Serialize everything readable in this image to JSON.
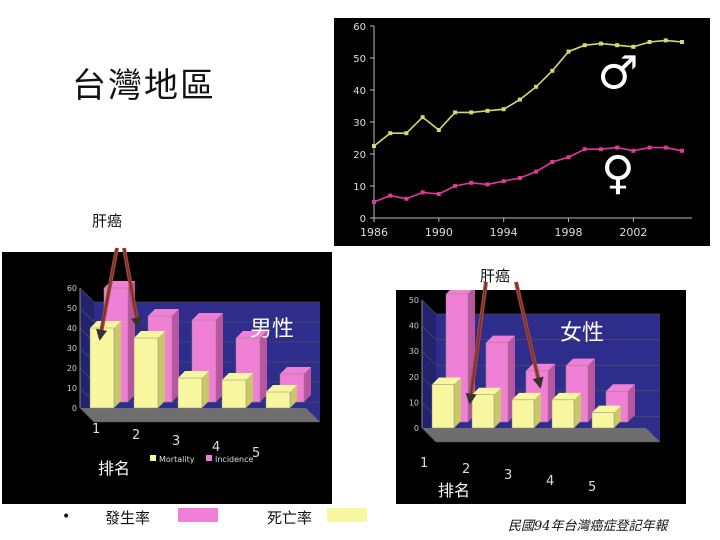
{
  "title": "台灣地區",
  "liver_label": "肝癌",
  "caption": "民國94年台灣癌症登記年報",
  "bullet": "•",
  "legend": {
    "incidence_label": "發生率",
    "mortality_label": "死亡率",
    "incidence_color": "#f07fd6",
    "mortality_color": "#f8f7a0"
  },
  "chart_data": [
    {
      "type": "line",
      "x": [
        1986,
        1987,
        1988,
        1989,
        1990,
        1991,
        1992,
        1993,
        1994,
        1995,
        1996,
        1997,
        1998,
        1999,
        2000,
        2001,
        2002,
        2003,
        2004,
        2005
      ],
      "series": [
        {
          "symbol": "♂",
          "color": "#d8d86a",
          "values": [
            22.5,
            26.5,
            26.5,
            31.5,
            27.5,
            33,
            33,
            33.5,
            34,
            37,
            41,
            46,
            52,
            54,
            54.5,
            54,
            53.5,
            55,
            55.5,
            55
          ]
        },
        {
          "symbol": "♀",
          "color": "#e0389a",
          "values": [
            5,
            7,
            6,
            8,
            7.5,
            10,
            11,
            10.5,
            11.5,
            12.5,
            14.5,
            17.5,
            19,
            21.5,
            21.5,
            22,
            21,
            22,
            22,
            21
          ]
        }
      ],
      "xticks": [
        "1986",
        "1990",
        "1994",
        "1998",
        "2002"
      ],
      "yticks": [
        "0",
        "10",
        "20",
        "30",
        "40",
        "50",
        "60"
      ],
      "ylim": [
        0,
        60
      ],
      "grid": false
    },
    {
      "type": "bar",
      "title": "男性",
      "xlabel": "排名",
      "categories": [
        "1",
        "2",
        "3",
        "4",
        "5"
      ],
      "series": [
        {
          "name": "Mortality",
          "color": "#f8f7a0",
          "values": [
            40,
            35,
            15,
            14,
            8
          ]
        },
        {
          "name": "Incidence",
          "color": "#f07fd6",
          "values": [
            57,
            43,
            41,
            32,
            14
          ]
        }
      ],
      "yticks": [
        "0",
        "10",
        "20",
        "30",
        "40",
        "50",
        "60"
      ],
      "ylim": [
        0,
        60
      ],
      "legend": "bottom"
    },
    {
      "type": "bar",
      "title": "女性",
      "xlabel": "排名",
      "categories": [
        "1",
        "2",
        "3",
        "4",
        "5"
      ],
      "series": [
        {
          "name": "Mortality",
          "color": "#f8f7a0",
          "values": [
            17,
            13,
            11,
            11,
            6
          ]
        },
        {
          "name": "Incidence",
          "color": "#f07fd6",
          "values": [
            50,
            31,
            20,
            22,
            12
          ]
        }
      ],
      "yticks": [
        "0",
        "10",
        "20",
        "30",
        "40",
        "50"
      ],
      "ylim": [
        0,
        50
      ]
    }
  ]
}
